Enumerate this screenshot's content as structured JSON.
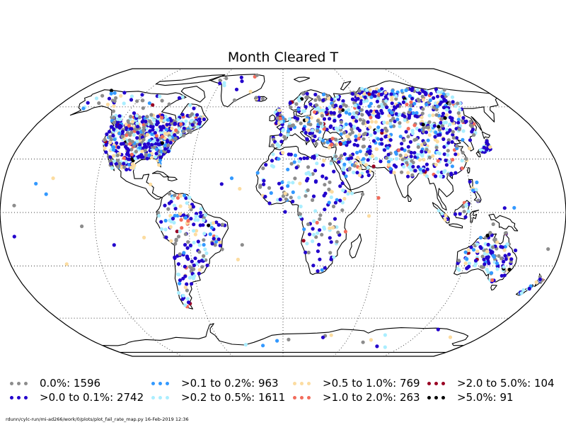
{
  "title": "Month Cleared T",
  "footer": "rdunn/cylc-run/mi-ad266/work/0/plots/plot_fail_rate_map.py   16-Feb-2019 12:36",
  "legend": [
    {
      "label": "0.0%: 1596",
      "color": "#8c8c8c"
    },
    {
      "label": ">0.0 to 0.1%: 2742",
      "color": "#2200cc"
    },
    {
      "label": ">0.1 to 0.2%: 963",
      "color": "#3399ff"
    },
    {
      "label": ">0.2 to 0.5%: 1611",
      "color": "#aaeeff"
    },
    {
      "label": ">0.5 to 1.0%: 769",
      "color": "#fcdca0"
    },
    {
      "label": ">1.0 to 2.0%: 263",
      "color": "#f26b5b"
    },
    {
      "label": ">2.0 to 5.0%: 104",
      "color": "#990022"
    },
    {
      "label": ">5.0%: 91",
      "color": "#000000"
    }
  ],
  "map": {
    "projection": "Robinson",
    "coastline_color": "#000000",
    "graticule_style": "dotted",
    "graticule_lat_step": 30,
    "graticule_lon_step": 60
  }
}
